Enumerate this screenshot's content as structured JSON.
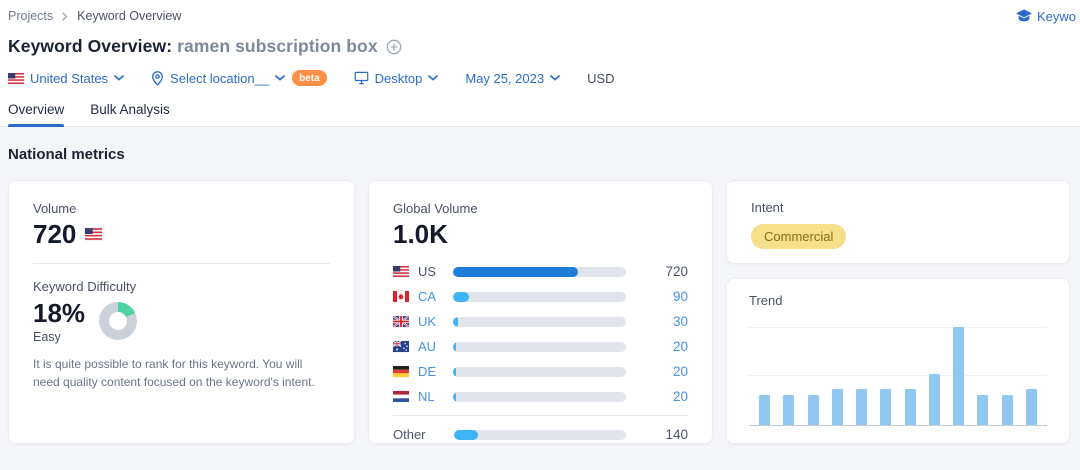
{
  "breadcrumb": {
    "projects": "Projects",
    "current": "Keyword Overview"
  },
  "academy": {
    "label": "Keywo"
  },
  "title": {
    "prefix": "Keyword Overview:",
    "keyword": "ramen subscription box"
  },
  "filters": {
    "country": "United States",
    "location": "Select location__",
    "beta": "beta",
    "device": "Desktop",
    "date": "May 25, 2023",
    "currency": "USD"
  },
  "tabs": [
    {
      "label": "Overview"
    },
    {
      "label": "Bulk Analysis"
    }
  ],
  "section_title": "National metrics",
  "volume_card": {
    "label": "Volume",
    "value": "720",
    "kd_label": "Keyword Difficulty",
    "kd_value": "18%",
    "kd_level": "Easy",
    "kd_percent": 18,
    "kd_description": "It is quite possible to rank for this keyword. You will need quality content focused on the keyword's intent."
  },
  "global_volume": {
    "label": "Global Volume",
    "total": "1.0K",
    "rows": [
      {
        "label": "US",
        "value": "720",
        "share": 72
      },
      {
        "label": "CA",
        "value": "90",
        "share": 9
      },
      {
        "label": "UK",
        "value": "30",
        "share": 3
      },
      {
        "label": "AU",
        "value": "20",
        "share": 2
      },
      {
        "label": "DE",
        "value": "20",
        "share": 2
      },
      {
        "label": "NL",
        "value": "20",
        "share": 2
      },
      {
        "label": "Other",
        "value": "140",
        "share": 14
      }
    ]
  },
  "intent_card": {
    "label": "Intent",
    "badge": "Commercial"
  },
  "trend_card": {
    "label": "Trend"
  },
  "chart_data": {
    "type": "bar",
    "title": "Trend",
    "values": [
      0.31,
      0.31,
      0.31,
      0.37,
      0.37,
      0.37,
      0.37,
      0.52,
      1.0,
      0.31,
      0.31,
      0.37
    ],
    "ylim": [
      0,
      1
    ],
    "gridlines_y": [
      0.515,
      1.0
    ],
    "bar_color": "#8fc7ee",
    "legend": false
  },
  "colors": {
    "link_blue": "#2b6cc8",
    "bar_dark_blue": "#1f7cd9",
    "bar_light_blue": "#3eb4f4",
    "trend_bar": "#8fc7ee",
    "kd_green": "#50d2a0",
    "kd_track": "#ccd0d9",
    "beta_bg": "#ff8f45",
    "intent_bg": "#f6df8a",
    "intent_text": "#8b6d14"
  }
}
